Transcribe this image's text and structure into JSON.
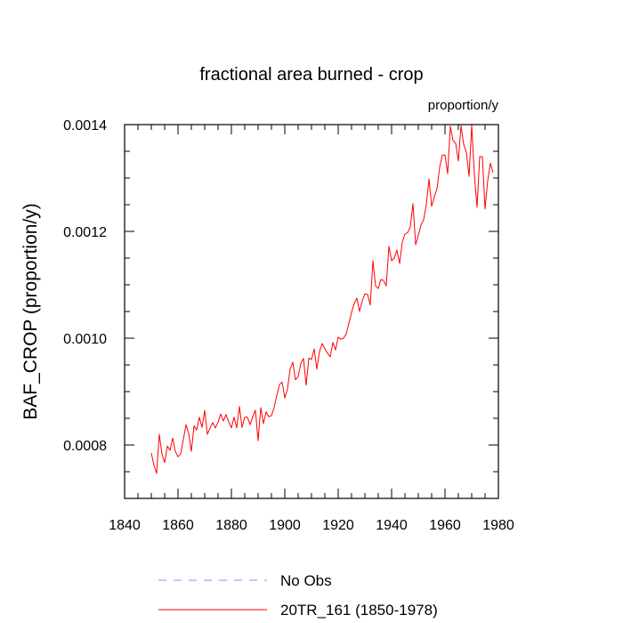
{
  "chart_data": {
    "type": "line",
    "title": "fractional area burned - crop",
    "units_label": "proportion/y",
    "ylabel": "BAF_CROP  (proportion/y)",
    "xlabel": "",
    "xlim": [
      1840,
      1980
    ],
    "ylim": [
      0.0007,
      0.0014
    ],
    "x_major_ticks": [
      1840,
      1860,
      1880,
      1900,
      1920,
      1940,
      1960,
      1980
    ],
    "x_minor_step": 5,
    "x_tick_labels": [
      "1840",
      "1860",
      "1880",
      "1900",
      "1920",
      "1940",
      "1960",
      "1980"
    ],
    "y_major_ticks": [
      0.0008,
      0.001,
      0.0012,
      0.0014
    ],
    "y_minor_step": 5e-05,
    "y_tick_labels": [
      "0.0008",
      "0.0010",
      "0.0012",
      "0.0014"
    ],
    "grid": false,
    "legend": [
      {
        "label": "No Obs",
        "color": "#8888ff",
        "style": "dashed"
      },
      {
        "label": "20TR_161 (1850-1978)",
        "color": "#ff0000",
        "style": "solid"
      }
    ],
    "series": [
      {
        "name": "20TR_161 (1850-1978)",
        "color": "#ff0000",
        "x": [
          1850,
          1851,
          1852,
          1853,
          1854,
          1855,
          1856,
          1857,
          1858,
          1859,
          1860,
          1861,
          1862,
          1863,
          1864,
          1865,
          1866,
          1867,
          1868,
          1869,
          1870,
          1871,
          1872,
          1873,
          1874,
          1875,
          1876,
          1877,
          1878,
          1879,
          1880,
          1881,
          1882,
          1883,
          1884,
          1885,
          1886,
          1887,
          1888,
          1889,
          1890,
          1891,
          1892,
          1893,
          1894,
          1895,
          1896,
          1897,
          1898,
          1899,
          1900,
          1901,
          1902,
          1903,
          1904,
          1905,
          1906,
          1907,
          1908,
          1909,
          1910,
          1911,
          1912,
          1913,
          1914,
          1915,
          1916,
          1917,
          1918,
          1919,
          1920,
          1921,
          1922,
          1923,
          1924,
          1925,
          1926,
          1927,
          1928,
          1929,
          1930,
          1931,
          1932,
          1933,
          1934,
          1935,
          1936,
          1937,
          1938,
          1939,
          1940,
          1941,
          1942,
          1943,
          1944,
          1945,
          1946,
          1947,
          1948,
          1949,
          1950,
          1951,
          1952,
          1953,
          1954,
          1955,
          1956,
          1957,
          1958,
          1959,
          1960,
          1961,
          1962,
          1963,
          1964,
          1965,
          1966,
          1967,
          1968,
          1969,
          1970,
          1971,
          1972,
          1973,
          1974,
          1975,
          1976,
          1977,
          1978
        ],
        "values": [
          0.000785,
          0.000762,
          0.000747,
          0.00082,
          0.000783,
          0.000767,
          0.000798,
          0.00079,
          0.000813,
          0.000788,
          0.000778,
          0.000783,
          0.00081,
          0.000838,
          0.000822,
          0.000788,
          0.000836,
          0.000828,
          0.000852,
          0.000833,
          0.000865,
          0.00082,
          0.000832,
          0.000842,
          0.000832,
          0.000843,
          0.000858,
          0.000845,
          0.000857,
          0.000843,
          0.000832,
          0.000852,
          0.000832,
          0.000872,
          0.000833,
          0.000852,
          0.000852,
          0.000838,
          0.000853,
          0.000865,
          0.000808,
          0.00087,
          0.00084,
          0.000862,
          0.000853,
          0.000855,
          0.00087,
          0.000893,
          0.000913,
          0.000918,
          0.000888,
          0.000905,
          0.000942,
          0.000955,
          0.000922,
          0.000928,
          0.000953,
          0.000962,
          0.000912,
          0.000963,
          0.00096,
          0.00098,
          0.000942,
          0.000975,
          0.00099,
          0.00098,
          0.000972,
          0.000965,
          0.000992,
          0.000978,
          0.001002,
          0.000998,
          0.001,
          0.001008,
          0.001028,
          0.001048,
          0.001065,
          0.001075,
          0.00105,
          0.00107,
          0.001083,
          0.001082,
          0.001062,
          0.001145,
          0.001098,
          0.001093,
          0.00111,
          0.001108,
          0.001098,
          0.001172,
          0.001145,
          0.00115,
          0.001165,
          0.00114,
          0.00118,
          0.001195,
          0.001198,
          0.001208,
          0.001252,
          0.001175,
          0.001192,
          0.001212,
          0.001222,
          0.00125,
          0.001298,
          0.001247,
          0.001265,
          0.00128,
          0.00132,
          0.001343,
          0.001343,
          0.001308,
          0.001397,
          0.00137,
          0.001365,
          0.001332,
          0.001398,
          0.001363,
          0.001348,
          0.001303,
          0.001398,
          0.001307,
          0.001245,
          0.00134,
          0.00134,
          0.001242,
          0.001295,
          0.001328,
          0.00131
        ]
      }
    ]
  }
}
